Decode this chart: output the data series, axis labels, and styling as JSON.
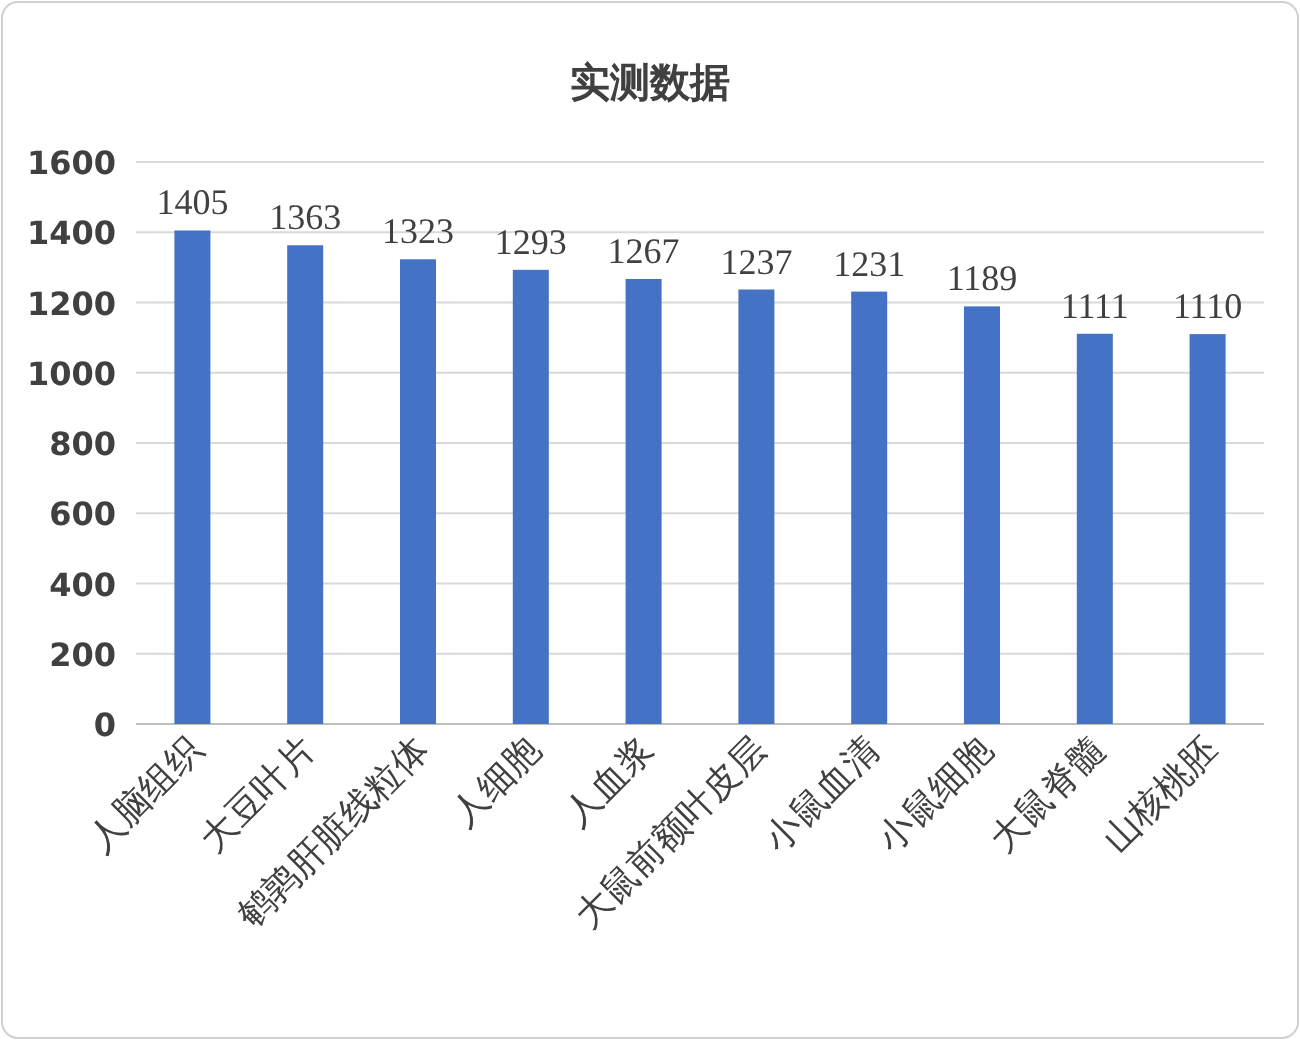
{
  "chart_data": {
    "type": "bar",
    "title": "实测数据",
    "categories": [
      "人脑组织",
      "大豆叶片",
      "鹌鹑肝脏线粒体",
      "人细胞",
      "人血浆",
      "大鼠前额叶皮层",
      "小鼠血清",
      "小鼠细胞",
      "大鼠脊髓",
      "山核桃胚"
    ],
    "values": [
      1405,
      1363,
      1323,
      1293,
      1267,
      1237,
      1231,
      1189,
      1111,
      1110
    ],
    "color": "#4472c4",
    "ylim": [
      0,
      1600
    ],
    "yticks": [
      0,
      200,
      400,
      600,
      800,
      1000,
      1200,
      1400,
      1600
    ],
    "grid": "y",
    "data_labels": true
  }
}
